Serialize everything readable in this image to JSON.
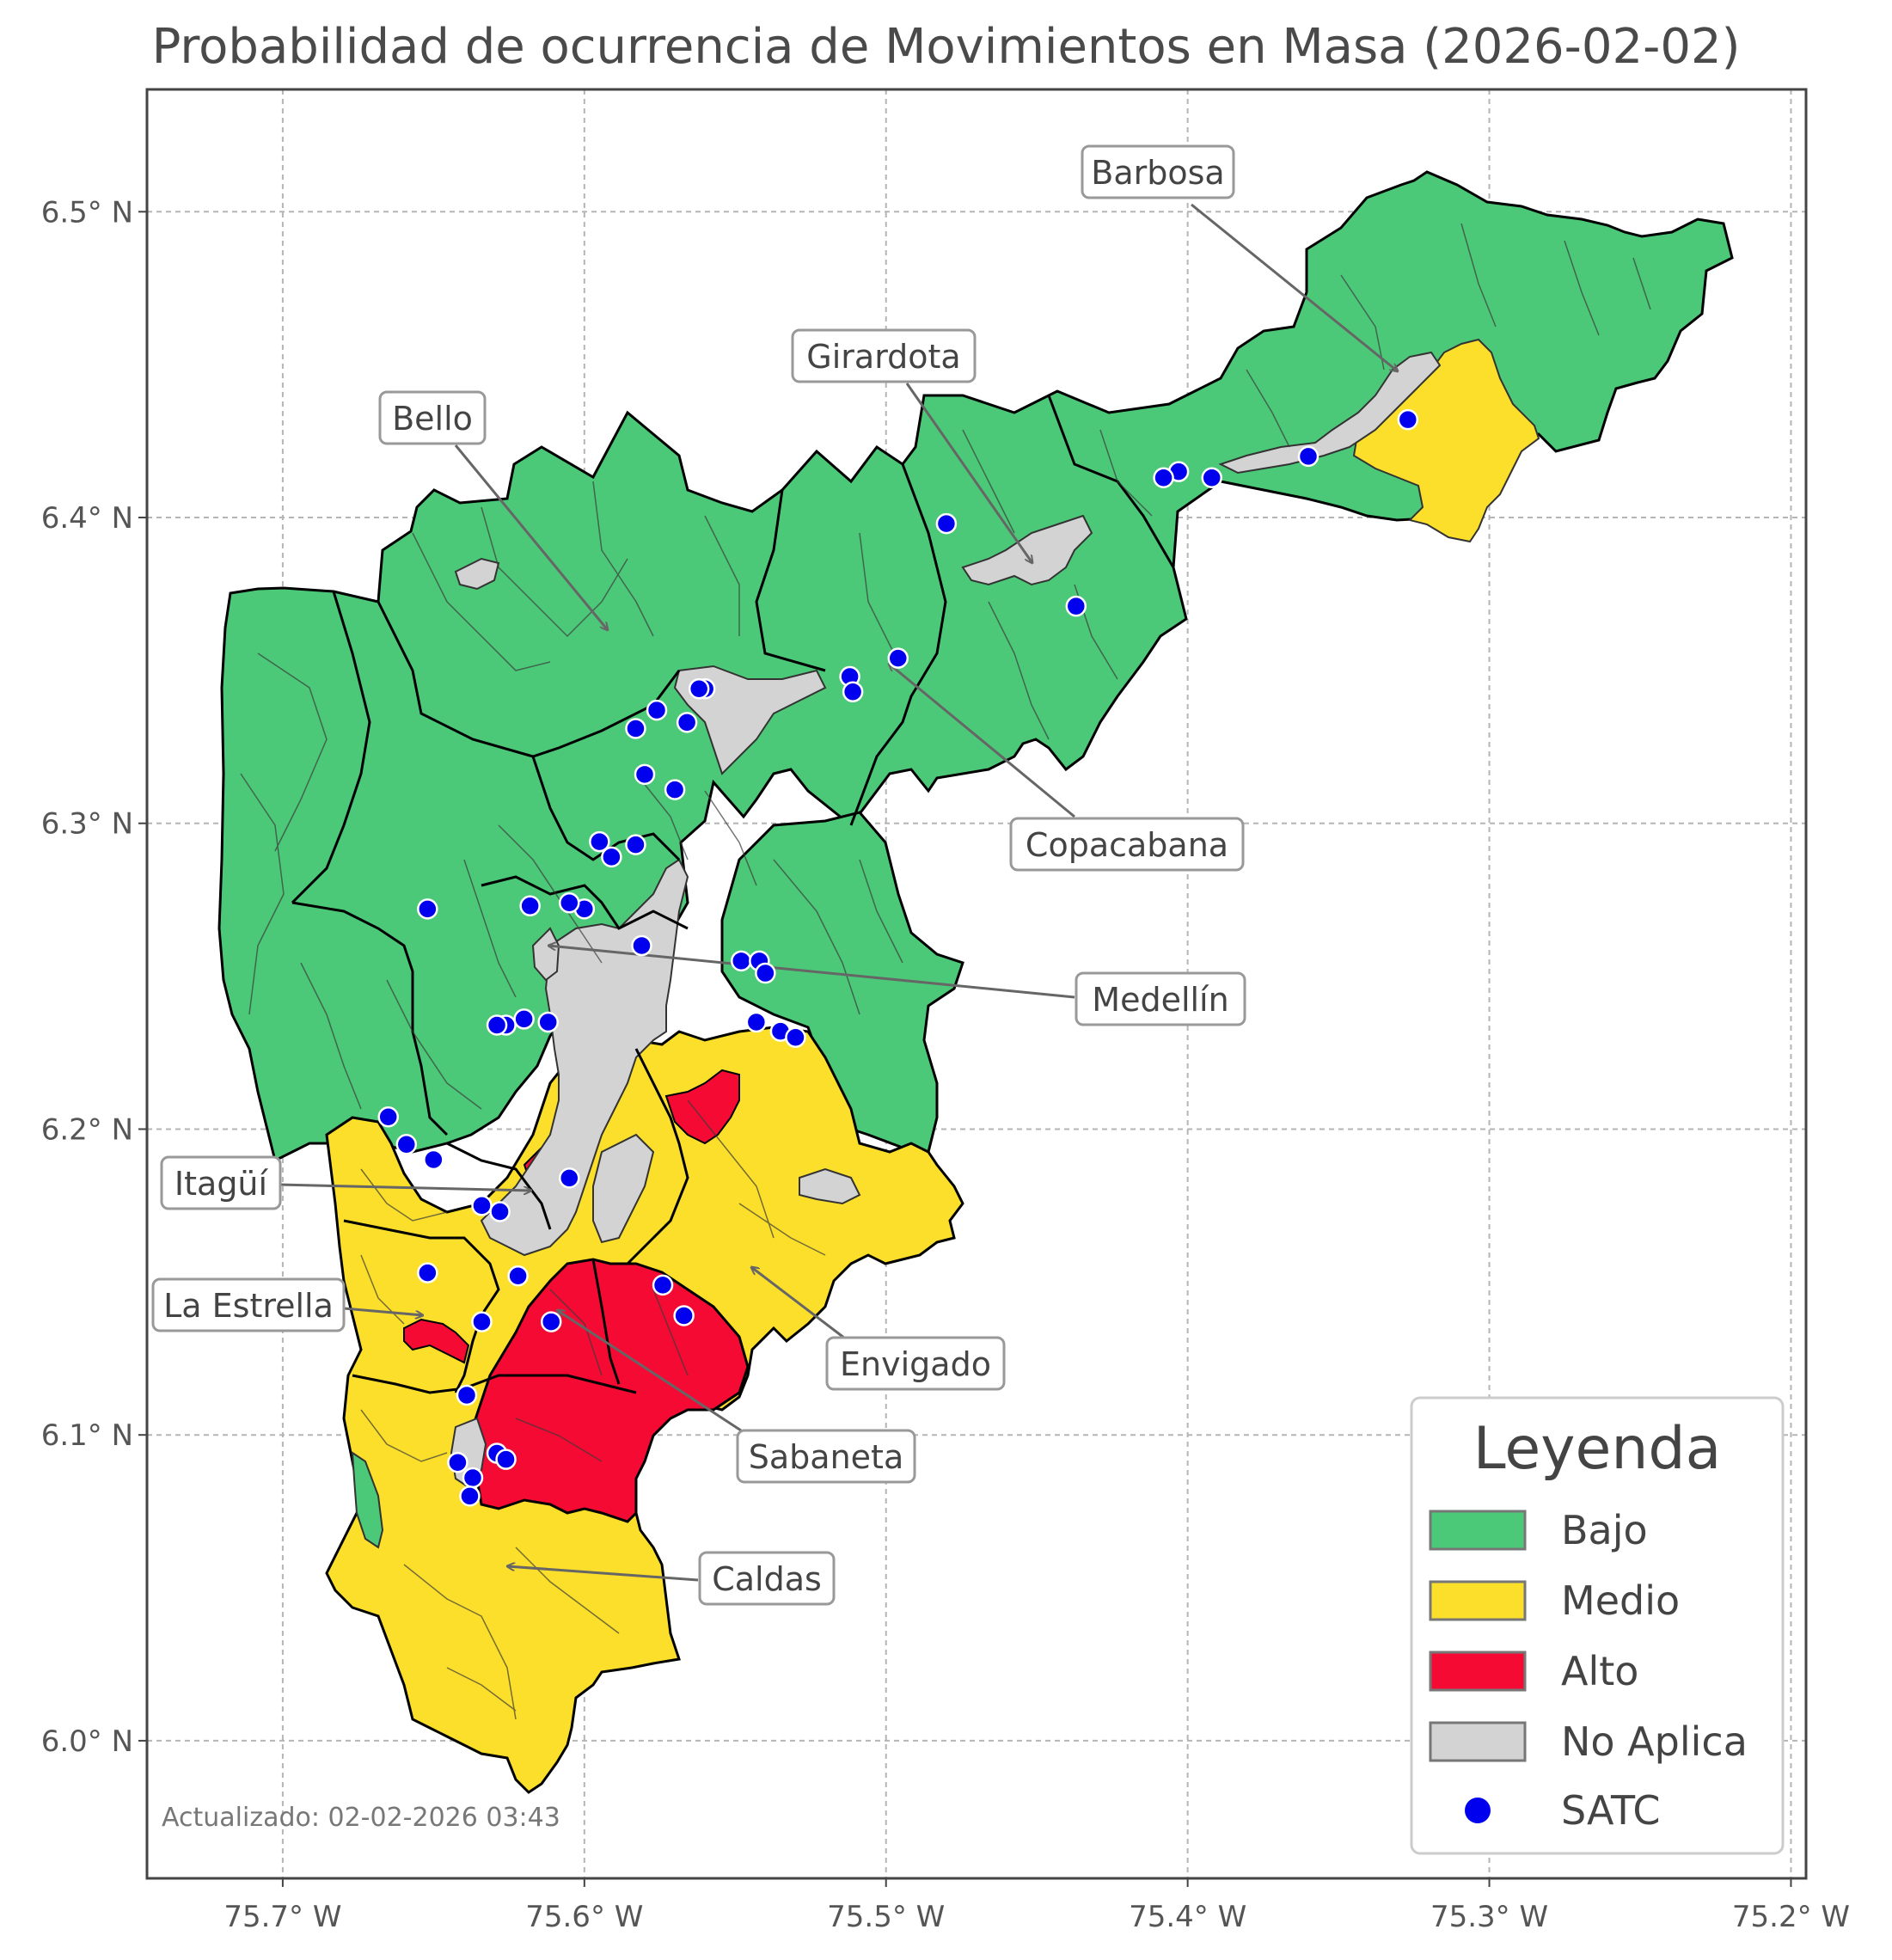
{
  "title": "Probabilidad de ocurrencia de Movimientos en Masa (2026-02-02)",
  "updated": "Actualizado: 02-02-2026 03:43",
  "colors": {
    "bajo": "#4CC978",
    "medio": "#FBDF2A",
    "alto": "#F40A33",
    "no_aplica": "#D3D3D3",
    "satc": "#0000EE"
  },
  "axes": {
    "lon_ticks": [
      "75.7° W",
      "75.6° W",
      "75.5° W",
      "75.4° W",
      "75.3° W",
      "75.2° W"
    ],
    "lat_ticks": [
      "6.5° N",
      "6.4° N",
      "6.3° N",
      "6.2° N",
      "6.1° N",
      "6.0° N"
    ],
    "lon_values": [
      -75.7,
      -75.6,
      -75.5,
      -75.4,
      -75.3,
      -75.2
    ],
    "lat_values": [
      6.5,
      6.4,
      6.3,
      6.2,
      6.1,
      6.0
    ],
    "lon_range": [
      -75.745,
      -75.195
    ],
    "lat_range": [
      5.955,
      6.54
    ],
    "grid": true
  },
  "municipalities": [
    {
      "name": "Barbosa",
      "lon": -75.332,
      "lat": 6.438
    },
    {
      "name": "Girardota",
      "lon": -75.447,
      "lat": 6.38
    },
    {
      "name": "Bello",
      "lon": -75.592,
      "lat": 6.358
    },
    {
      "name": "Copacabana",
      "lon": -75.5,
      "lat": 6.352
    },
    {
      "name": "Medellín",
      "lon": -75.61,
      "lat": 6.26
    },
    {
      "name": "Itagüí",
      "lon": -75.617,
      "lat": 6.18
    },
    {
      "name": "La Estrella",
      "lon": -75.65,
      "lat": 6.138
    },
    {
      "name": "Envigado",
      "lon": -75.545,
      "lat": 6.152
    },
    {
      "name": "Sabaneta",
      "lon": -75.608,
      "lat": 6.138
    },
    {
      "name": "Caldas",
      "lon": -75.625,
      "lat": 6.055
    }
  ],
  "legend": {
    "title": "Leyenda",
    "items": [
      {
        "label": "Bajo",
        "kind": "patch",
        "color": "#4CC978"
      },
      {
        "label": "Medio",
        "kind": "patch",
        "color": "#FBDF2A"
      },
      {
        "label": "Alto",
        "kind": "patch",
        "color": "#F40A33"
      },
      {
        "label": "No Aplica",
        "kind": "patch",
        "color": "#D3D3D3"
      },
      {
        "label": "SATC",
        "kind": "marker",
        "color": "#0000EE"
      }
    ]
  },
  "satc_stations": [
    [
      -75.327,
      6.432
    ],
    [
      -75.36,
      6.42
    ],
    [
      -75.392,
      6.413
    ],
    [
      -75.403,
      6.415
    ],
    [
      -75.408,
      6.413
    ],
    [
      -75.48,
      6.398
    ],
    [
      -75.437,
      6.371
    ],
    [
      -75.496,
      6.354
    ],
    [
      -75.512,
      6.348
    ],
    [
      -75.511,
      6.343
    ],
    [
      -75.56,
      6.344
    ],
    [
      -75.562,
      6.344
    ],
    [
      -75.566,
      6.333
    ],
    [
      -75.576,
      6.337
    ],
    [
      -75.583,
      6.331
    ],
    [
      -75.58,
      6.316
    ],
    [
      -75.57,
      6.311
    ],
    [
      -75.583,
      6.293
    ],
    [
      -75.595,
      6.294
    ],
    [
      -75.591,
      6.289
    ],
    [
      -75.6,
      6.272
    ],
    [
      -75.605,
      6.274
    ],
    [
      -75.618,
      6.273
    ],
    [
      -75.652,
      6.272
    ],
    [
      -75.581,
      6.26
    ],
    [
      -75.548,
      6.255
    ],
    [
      -75.542,
      6.255
    ],
    [
      -75.54,
      6.251
    ],
    [
      -75.543,
      6.235
    ],
    [
      -75.535,
      6.232
    ],
    [
      -75.53,
      6.23
    ],
    [
      -75.62,
      6.236
    ],
    [
      -75.612,
      6.235
    ],
    [
      -75.626,
      6.234
    ],
    [
      -75.629,
      6.234
    ],
    [
      -75.665,
      6.204
    ],
    [
      -75.659,
      6.195
    ],
    [
      -75.65,
      6.19
    ],
    [
      -75.605,
      6.184
    ],
    [
      -75.634,
      6.175
    ],
    [
      -75.628,
      6.173
    ],
    [
      -75.652,
      6.153
    ],
    [
      -75.622,
      6.152
    ],
    [
      -75.574,
      6.149
    ],
    [
      -75.567,
      6.139
    ],
    [
      -75.634,
      6.137
    ],
    [
      -75.611,
      6.137
    ],
    [
      -75.639,
      6.113
    ],
    [
      -75.629,
      6.094
    ],
    [
      -75.626,
      6.092
    ],
    [
      -75.642,
      6.091
    ],
    [
      -75.637,
      6.086
    ],
    [
      -75.638,
      6.08
    ]
  ]
}
